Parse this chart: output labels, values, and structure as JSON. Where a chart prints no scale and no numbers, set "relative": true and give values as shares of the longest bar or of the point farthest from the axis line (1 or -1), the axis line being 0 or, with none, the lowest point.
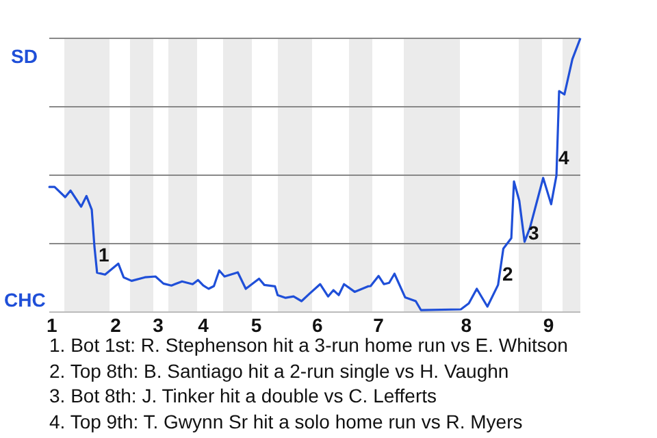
{
  "chart_data": {
    "type": "line",
    "color": "#1f4fd8",
    "relative": true,
    "categories": [
      null,
      "1",
      null,
      null,
      null,
      null,
      null,
      null,
      null,
      null,
      null,
      null,
      null,
      null,
      null,
      null,
      null,
      null,
      null,
      null,
      null,
      null,
      null,
      null,
      null,
      "2",
      null,
      null,
      null,
      null,
      null,
      null,
      null,
      null,
      null,
      null,
      null,
      null,
      null,
      null,
      null,
      "3",
      null,
      null,
      null,
      null,
      null,
      null,
      null,
      null,
      null,
      null,
      null,
      null,
      null,
      null,
      null,
      null,
      "4",
      null,
      null,
      null,
      null,
      null,
      null,
      null,
      null,
      null,
      null,
      null,
      null,
      null,
      null,
      null,
      null,
      null,
      null,
      null,
      "5",
      null,
      null,
      null,
      null,
      null,
      null,
      null,
      null,
      null,
      null,
      null,
      null,
      null,
      null,
      null,
      null,
      null,
      null,
      null,
      null,
      null,
      null,
      "6",
      null,
      null,
      null,
      null,
      null,
      null,
      null,
      null,
      null,
      null,
      null,
      null,
      null,
      null,
      null,
      null,
      null,
      null,
      null,
      null,
      null,
      null,
      "7",
      null,
      null,
      null,
      null,
      null,
      null,
      null,
      null,
      null,
      null,
      null,
      null,
      null,
      null,
      null,
      null,
      null,
      null,
      null,
      null,
      null,
      null,
      null,
      null,
      null,
      null,
      null,
      null,
      null,
      null,
      null,
      null,
      "8",
      null,
      null,
      null,
      null,
      null,
      null,
      null,
      null,
      null,
      null,
      null,
      null,
      null,
      null,
      null,
      null,
      null,
      null,
      null,
      null,
      null,
      null,
      null,
      null,
      null,
      null,
      null,
      null,
      null,
      null,
      "9",
      null,
      null,
      null,
      null,
      null,
      null,
      null,
      null,
      null,
      null,
      null,
      null
    ],
    "values": [
      0.457,
      null,
      0.457,
      null,
      null,
      null,
      0.42,
      null,
      0.444,
      null,
      null,
      null,
      0.385,
      null,
      0.424,
      null,
      0.374,
      0.24,
      0.144,
      null,
      null,
      0.137,
      null,
      null,
      null,
      null,
      0.177,
      null,
      0.127,
      null,
      null,
      0.114,
      null,
      null,
      null,
      null,
      0.127,
      null,
      null,
      null,
      0.13,
      null,
      null,
      0.104,
      null,
      null,
      0.097,
      null,
      null,
      null,
      0.112,
      null,
      null,
      null,
      0.102,
      null,
      0.117,
      null,
      0.097,
      null,
      0.085,
      null,
      0.095,
      null,
      0.152,
      null,
      0.13,
      null,
      null,
      null,
      null,
      0.145,
      null,
      null,
      0.085,
      null,
      null,
      null,
      null,
      0.122,
      null,
      0.099,
      null,
      null,
      null,
      0.094,
      0.062,
      null,
      null,
      0.052,
      null,
      null,
      0.057,
      null,
      null,
      0.04,
      null,
      null,
      0.067,
      null,
      null,
      null,
      0.102,
      null,
      null,
      0.057,
      null,
      0.08,
      null,
      0.062,
      null,
      0.102,
      null,
      null,
      null,
      0.074,
      null,
      null,
      null,
      null,
      0.094,
      0.095,
      null,
      null,
      0.132,
      null,
      0.102,
      null,
      0.107,
      null,
      0.14,
      null,
      null,
      null,
      0.054,
      null,
      null,
      null,
      0.04,
      null,
      0.007,
      null,
      null,
      null,
      null,
      null,
      null,
      null,
      null,
      null,
      null,
      null,
      null,
      null,
      null,
      0.01,
      null,
      null,
      0.032,
      null,
      null,
      0.085,
      null,
      null,
      null,
      0.02,
      null,
      null,
      null,
      0.099,
      null,
      0.232,
      null,
      null,
      0.27,
      0.477,
      null,
      0.407,
      null,
      0.257,
      null,
      0.307,
      null,
      null,
      null,
      null,
      0.49,
      null,
      null,
      0.394,
      null,
      0.499,
      0.807,
      null,
      0.795,
      null,
      null,
      0.924,
      null,
      null,
      1
    ],
    "grid": "y",
    "legend": false,
    "marker": "none",
    "line_style": "solid",
    "annotations": [
      "SD",
      "CHC",
      "1",
      "2",
      "3",
      "4",
      "1. Bot 1st: R. Stephenson hit a 3-run home run vs E. Whitson",
      "2. Top 8th: B. Santiago hit a 2-run single vs H. Vaughn",
      "3. Bot 8th: J. Tinker hit a double vs C. Lefferts",
      "4. Top 9th: T. Gwynn Sr hit a solo home run vs R. Myers"
    ]
  }
}
